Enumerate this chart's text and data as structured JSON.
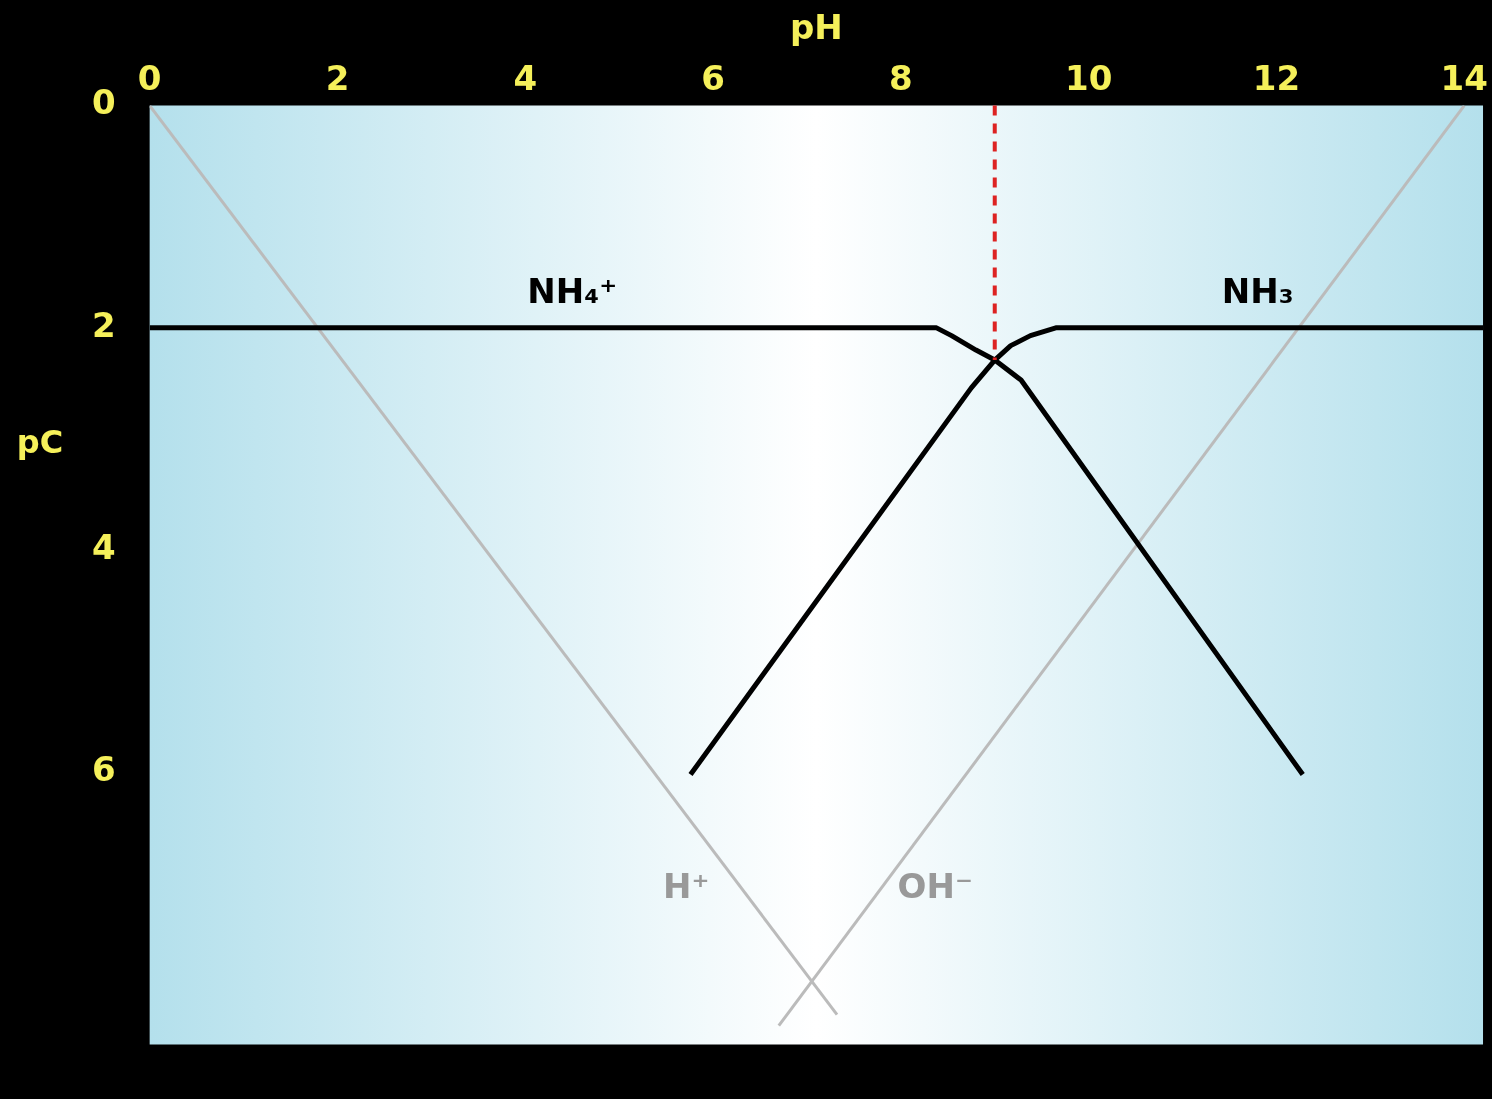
{
  "chart_data": {
    "type": "line",
    "xlabel": "pH",
    "ylabel": "pC",
    "xlim": [
      0,
      14.2
    ],
    "xticks": [
      0,
      2,
      4,
      6,
      8,
      10,
      12,
      14
    ],
    "ylim": [
      8.45,
      0
    ],
    "yticks": [
      0,
      2,
      4,
      6
    ],
    "grid": false,
    "legend": false,
    "marker": "none",
    "line_style": "solid",
    "series": [
      {
        "color": "#000000",
        "x": [
          0,
          8.38,
          8.54,
          8.8,
          9.0,
          9.28,
          12.28
        ],
        "values": [
          2,
          2,
          2.07,
          2.2,
          2.29,
          2.47,
          6.02
        ]
      },
      {
        "color": "#000000",
        "x": [
          5.76,
          8.75,
          9.0,
          9.17,
          9.38,
          9.65,
          14.2
        ],
        "values": [
          6.02,
          2.54,
          2.29,
          2.16,
          2.07,
          2,
          2
        ]
      },
      {
        "color": "#bbbbbb",
        "x": [
          0,
          7.32
        ],
        "values": [
          0,
          8.18
        ]
      },
      {
        "color": "#bbbbbb",
        "x": [
          14,
          6.7
        ],
        "values": [
          0,
          8.28
        ]
      }
    ],
    "ref_lines": [
      {
        "axis": "x",
        "value": 9.0,
        "color": "#dd2222",
        "line_style": "dashed"
      }
    ],
    "annotations": [
      {
        "text": "NH₄⁺",
        "x": 4.5,
        "y": 2
      },
      {
        "text": "NH₃",
        "x": 11.8,
        "y": 2
      },
      {
        "text": "H⁺",
        "x": 6.3,
        "y": 7.05
      },
      {
        "text": "OH⁻",
        "x": 7.78,
        "y": 7.05
      }
    ]
  }
}
